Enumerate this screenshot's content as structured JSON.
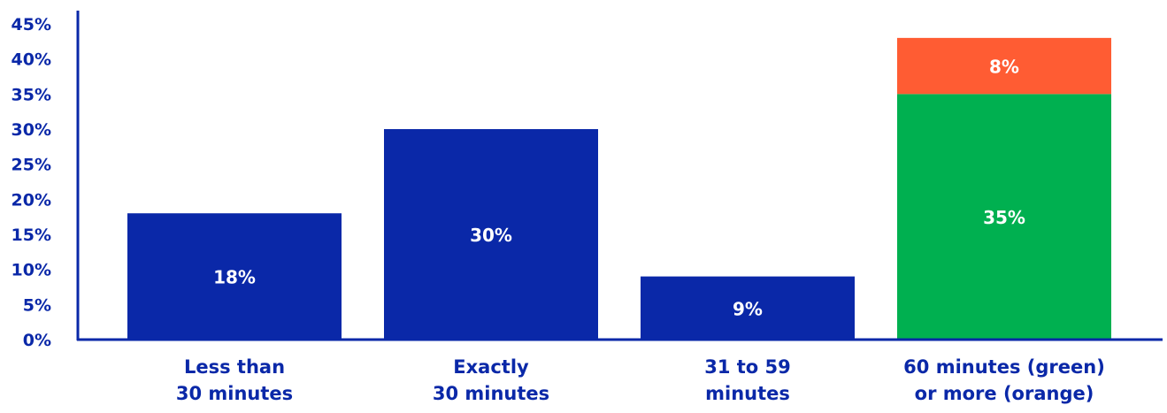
{
  "colors": {
    "axis": "#0a28a8",
    "tick_text": "#0a28a8",
    "category_text": "#0a28a8",
    "bar_default": "#0a28a8",
    "bar_green": "#00b050",
    "bar_orange": "#ff5c33",
    "data_label": "#ffffff"
  },
  "chart_data": {
    "type": "bar",
    "stacked": true,
    "title": "",
    "xlabel": "",
    "ylabel": "",
    "ylim": [
      0,
      45
    ],
    "yticks": [
      0,
      5,
      10,
      15,
      20,
      25,
      30,
      35,
      40,
      45
    ],
    "ytick_labels": [
      "0%",
      "5%",
      "10%",
      "15%",
      "20%",
      "25%",
      "30%",
      "35%",
      "40%",
      "45%"
    ],
    "grid": false,
    "legend": "none",
    "categories": [
      [
        "Less than",
        "30 minutes"
      ],
      [
        "Exactly",
        "30 minutes"
      ],
      [
        "31 to 59",
        "minutes"
      ],
      [
        "60 minutes (green)",
        "or more (orange)"
      ]
    ],
    "series": [
      {
        "values": [
          18,
          30,
          9,
          35
        ],
        "labels": [
          "18%",
          "30%",
          "9%",
          "35%"
        ],
        "colors": [
          "#0a28a8",
          "#0a28a8",
          "#0a28a8",
          "#00b050"
        ]
      },
      {
        "values": [
          0,
          0,
          0,
          8
        ],
        "labels": [
          "",
          "",
          "",
          "8%"
        ],
        "colors": [
          "#ff5c33",
          "#ff5c33",
          "#ff5c33",
          "#ff5c33"
        ]
      }
    ]
  }
}
